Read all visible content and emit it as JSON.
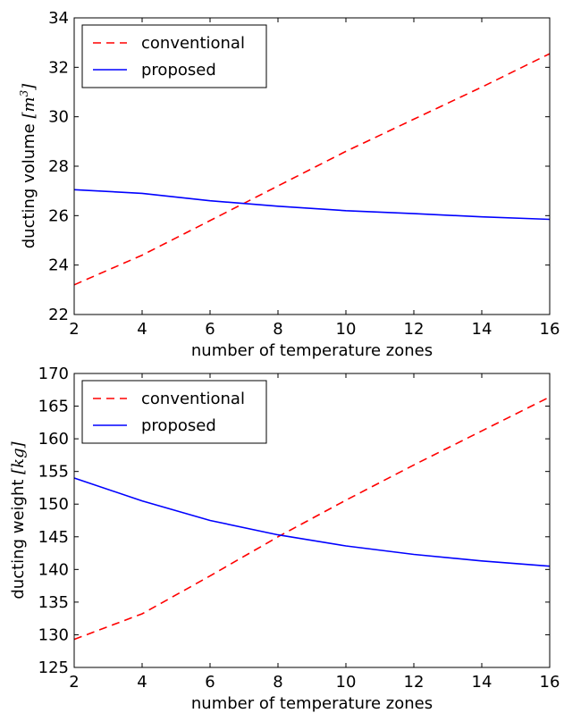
{
  "chart_data": [
    {
      "type": "line",
      "xlabel": "number of temperature zones",
      "ylabel_text": "ducting volume",
      "ylabel_unit": "m",
      "ylabel_unit_exp": "3",
      "xlim": [
        2,
        16
      ],
      "ylim": [
        22,
        34
      ],
      "xticks": [
        2,
        4,
        6,
        8,
        10,
        12,
        14,
        16
      ],
      "yticks": [
        22,
        24,
        26,
        28,
        30,
        32,
        34
      ],
      "legend": "top-left",
      "grid": false,
      "series": [
        {
          "name": "conventional",
          "color": "#ff0000",
          "style": "dashed",
          "x": [
            2,
            4,
            6,
            8,
            10,
            12,
            14,
            16
          ],
          "y": [
            23.2,
            24.4,
            25.8,
            27.2,
            28.6,
            29.9,
            31.2,
            32.55
          ]
        },
        {
          "name": "proposed",
          "color": "#0000ff",
          "style": "solid",
          "x": [
            2,
            4,
            6,
            8,
            10,
            12,
            14,
            16
          ],
          "y": [
            27.05,
            26.9,
            26.6,
            26.38,
            26.2,
            26.08,
            25.95,
            25.85
          ]
        }
      ]
    },
    {
      "type": "line",
      "xlabel": "number of temperature zones",
      "ylabel_text": "ducting weight",
      "ylabel_unit": "kg",
      "ylabel_unit_exp": "",
      "xlim": [
        2,
        16
      ],
      "ylim": [
        125,
        170
      ],
      "xticks": [
        2,
        4,
        6,
        8,
        10,
        12,
        14,
        16
      ],
      "yticks": [
        125,
        130,
        135,
        140,
        145,
        150,
        155,
        160,
        165,
        170
      ],
      "legend": "top-left",
      "grid": false,
      "series": [
        {
          "name": "conventional",
          "color": "#ff0000",
          "style": "dashed",
          "x": [
            2,
            4,
            6,
            8,
            10,
            12,
            14,
            16
          ],
          "y": [
            129.3,
            133.2,
            139.0,
            145.0,
            150.6,
            156.0,
            161.2,
            166.4
          ]
        },
        {
          "name": "proposed",
          "color": "#0000ff",
          "style": "solid",
          "x": [
            2,
            4,
            6,
            8,
            10,
            12,
            14,
            16
          ],
          "y": [
            154.0,
            150.5,
            147.5,
            145.3,
            143.6,
            142.3,
            141.3,
            140.5
          ]
        }
      ]
    }
  ]
}
